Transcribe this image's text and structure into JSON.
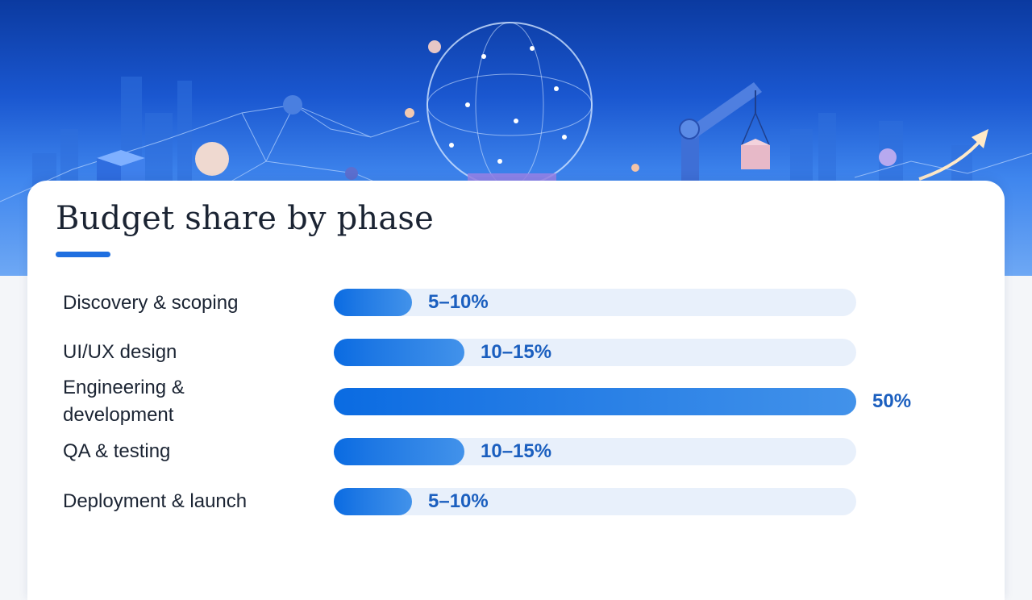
{
  "slide": {
    "title": "Budget share by phase"
  },
  "colors": {
    "bar_fill": "#0a6be2",
    "bar_track": "#e8f0fb",
    "value_text": "#1b5fbf",
    "hero_top": "#0b3aa0"
  },
  "hero": {
    "icons": [
      "network-globe-icon",
      "crane-icon",
      "box-icon",
      "growth-arrow-icon",
      "city-skyline-icon"
    ]
  },
  "chart_data": {
    "type": "bar",
    "orientation": "horizontal",
    "categories": [
      "Discovery & scoping",
      "UI/UX design",
      "Engineering & development",
      "QA & testing",
      "Deployment & launch"
    ],
    "value_labels": [
      "5–10%",
      "10–15%",
      "50%",
      "10–15%",
      "5–10%"
    ],
    "values": [
      7.5,
      12.5,
      50,
      12.5,
      7.5
    ],
    "xlim": [
      0,
      50
    ],
    "grid": false,
    "legend": "none"
  }
}
